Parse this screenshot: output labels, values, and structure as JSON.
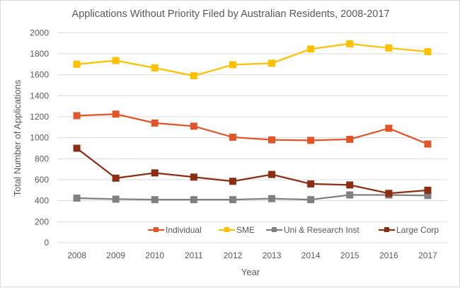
{
  "chart_data": {
    "type": "line",
    "title": "Applications Without Priority Filed by Australian Residents, 2008-2017",
    "xlabel": "Year",
    "ylabel": "Total Number of Applications",
    "categories": [
      "2008",
      "2009",
      "2010",
      "2011",
      "2012",
      "2013",
      "2014",
      "2015",
      "2016",
      "2017"
    ],
    "ylim": [
      0,
      2000
    ],
    "yticks": [
      0,
      200,
      400,
      600,
      800,
      1000,
      1200,
      1400,
      1600,
      1800,
      2000
    ],
    "grid": true,
    "legend_position": "bottom-right-inside",
    "series": [
      {
        "name": "Individual",
        "color": "#E15629",
        "values": [
          1210,
          1225,
          1140,
          1110,
          1005,
          980,
          975,
          985,
          1090,
          940
        ]
      },
      {
        "name": "SME",
        "color": "#FFC000",
        "values": [
          1700,
          1735,
          1665,
          1590,
          1695,
          1710,
          1845,
          1895,
          1855,
          1820
        ]
      },
      {
        "name": "Uni & Research Inst",
        "color": "#808080",
        "values": [
          425,
          415,
          410,
          410,
          410,
          420,
          410,
          455,
          455,
          450
        ]
      },
      {
        "name": "Large Corp",
        "color": "#8B2E11",
        "values": [
          900,
          615,
          665,
          625,
          585,
          650,
          560,
          550,
          470,
          500
        ]
      }
    ]
  }
}
